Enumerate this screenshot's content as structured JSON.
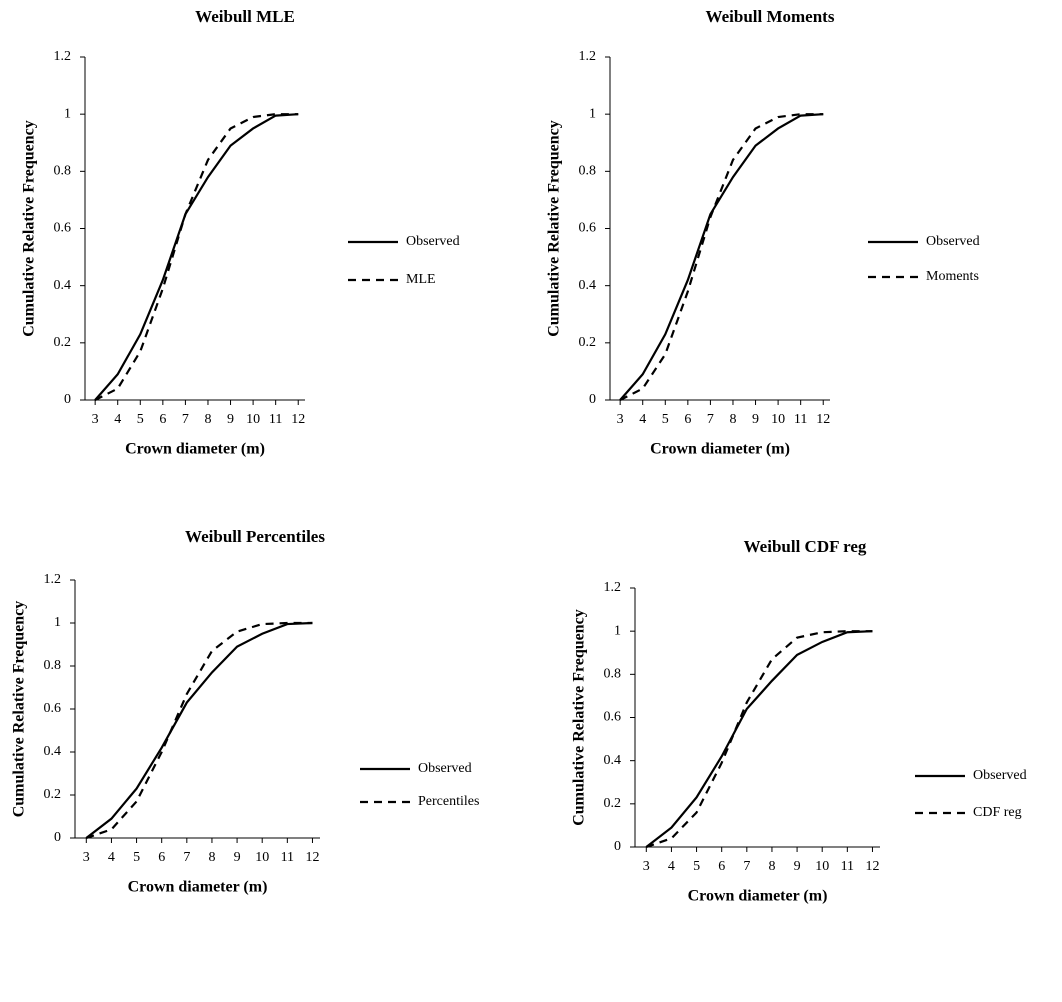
{
  "chart_data": [
    {
      "type": "line",
      "title": "Weibull MLE",
      "x_label": "Crown diameter (m)",
      "y_label": "Cumulative Relative Frequency",
      "x": [
        3,
        4,
        5,
        6,
        7,
        8,
        9,
        10,
        11,
        12
      ],
      "series": [
        {
          "name": "Observed",
          "color": "#000000",
          "dash": "solid",
          "values": [
            0,
            0.09,
            0.23,
            0.42,
            0.65,
            0.78,
            0.89,
            0.95,
            0.995,
            1
          ]
        },
        {
          "name": "MLE",
          "color": "#000000",
          "dash": "dashed",
          "values": [
            0,
            0.04,
            0.17,
            0.39,
            0.65,
            0.84,
            0.95,
            0.99,
            1,
            1
          ]
        }
      ],
      "xlim": [
        2.55,
        12.3
      ],
      "ylim": [
        0,
        1.2
      ],
      "xticks": [
        3,
        4,
        5,
        6,
        7,
        8,
        9,
        10,
        11,
        12
      ],
      "yticks": [
        0,
        0.2,
        0.4,
        0.6,
        0.8,
        1,
        1.2
      ],
      "grid": false
    },
    {
      "type": "line",
      "title": "Weibull Moments",
      "x_label": "Crown diameter (m)",
      "y_label": "Cumulative Relative Frequency",
      "x": [
        3,
        4,
        5,
        6,
        7,
        8,
        9,
        10,
        11,
        12
      ],
      "series": [
        {
          "name": "Observed",
          "color": "#000000",
          "dash": "solid",
          "values": [
            0,
            0.09,
            0.23,
            0.42,
            0.65,
            0.78,
            0.89,
            0.95,
            0.995,
            1
          ]
        },
        {
          "name": "Moments",
          "color": "#000000",
          "dash": "dashed",
          "values": [
            0,
            0.04,
            0.16,
            0.38,
            0.64,
            0.84,
            0.95,
            0.99,
            1,
            1
          ]
        }
      ],
      "xlim": [
        2.55,
        12.3
      ],
      "ylim": [
        0,
        1.2
      ],
      "xticks": [
        3,
        4,
        5,
        6,
        7,
        8,
        9,
        10,
        11,
        12
      ],
      "yticks": [
        0,
        0.2,
        0.4,
        0.6,
        0.8,
        1,
        1.2
      ],
      "grid": false
    },
    {
      "type": "line",
      "title": "Weibull Percentiles",
      "x_label": "Crown diameter (m)",
      "y_label": "Cumulative Relative Frequency",
      "x": [
        3,
        4,
        5,
        6,
        7,
        8,
        9,
        10,
        11,
        12
      ],
      "series": [
        {
          "name": "Observed",
          "color": "#000000",
          "dash": "solid",
          "values": [
            0,
            0.09,
            0.23,
            0.42,
            0.63,
            0.77,
            0.89,
            0.95,
            0.995,
            1
          ]
        },
        {
          "name": "Percentiles",
          "color": "#000000",
          "dash": "dashed",
          "values": [
            0,
            0.04,
            0.17,
            0.4,
            0.67,
            0.87,
            0.96,
            0.995,
            1,
            1
          ]
        }
      ],
      "xlim": [
        2.55,
        12.3
      ],
      "ylim": [
        0,
        1.2
      ],
      "xticks": [
        3,
        4,
        5,
        6,
        7,
        8,
        9,
        10,
        11,
        12
      ],
      "yticks": [
        0,
        0.2,
        0.4,
        0.6,
        0.8,
        1,
        1.2
      ],
      "grid": false
    },
    {
      "type": "line",
      "title": "Weibull CDF reg",
      "x_label": "Crown diameter (m)",
      "y_label": "Cumulative Relative Frequency",
      "x": [
        3,
        4,
        5,
        6,
        7,
        8,
        9,
        10,
        11,
        12
      ],
      "series": [
        {
          "name": "Observed",
          "color": "#000000",
          "dash": "solid",
          "values": [
            0,
            0.09,
            0.23,
            0.42,
            0.64,
            0.77,
            0.89,
            0.95,
            0.995,
            1
          ]
        },
        {
          "name": "CDF reg",
          "color": "#000000",
          "dash": "dashed",
          "values": [
            0,
            0.04,
            0.16,
            0.39,
            0.67,
            0.87,
            0.97,
            0.995,
            1,
            1
          ]
        }
      ],
      "xlim": [
        2.55,
        12.3
      ],
      "ylim": [
        0,
        1.2
      ],
      "xticks": [
        3,
        4,
        5,
        6,
        7,
        8,
        9,
        10,
        11,
        12
      ],
      "yticks": [
        0,
        0.2,
        0.4,
        0.6,
        0.8,
        1,
        1.2
      ],
      "grid": false
    }
  ]
}
